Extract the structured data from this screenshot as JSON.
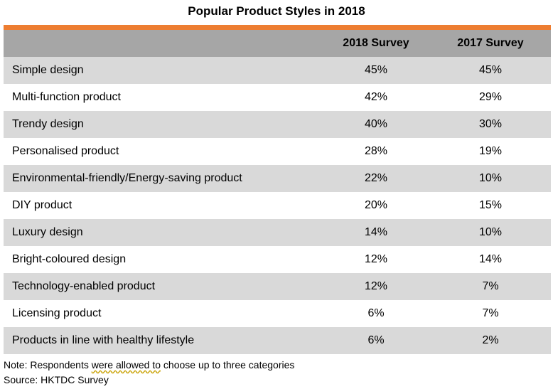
{
  "chart_data": {
    "type": "table",
    "title": "Popular Product Styles in 2018",
    "columns": [
      "",
      "2018 Survey",
      "2017 Survey"
    ],
    "series": [
      {
        "name": "2018 Survey",
        "values": [
          "45%",
          "42%",
          "40%",
          "28%",
          "22%",
          "20%",
          "14%",
          "12%",
          "12%",
          "6%",
          "6%"
        ]
      },
      {
        "name": "2017 Survey",
        "values": [
          "45%",
          "29%",
          "30%",
          "19%",
          "10%",
          "15%",
          "10%",
          "14%",
          "7%",
          "7%",
          "2%"
        ]
      }
    ],
    "rows": [
      {
        "label": "Simple design",
        "v2018": "45%",
        "v2017": "45%"
      },
      {
        "label": "Multi-function product",
        "v2018": "42%",
        "v2017": "29%"
      },
      {
        "label": "Trendy design",
        "v2018": "40%",
        "v2017": "30%"
      },
      {
        "label": "Personalised product",
        "v2018": "28%",
        "v2017": "19%"
      },
      {
        "label": "Environmental-friendly/Energy-saving product",
        "v2018": "22%",
        "v2017": "10%"
      },
      {
        "label": "DIY product",
        "v2018": "20%",
        "v2017": "15%"
      },
      {
        "label": "Luxury design",
        "v2018": "14%",
        "v2017": "10%"
      },
      {
        "label": "Bright-coloured design",
        "v2018": "12%",
        "v2017": "14%"
      },
      {
        "label": "Technology-enabled product",
        "v2018": "12%",
        "v2017": "7%"
      },
      {
        "label": "Licensing product",
        "v2018": "6%",
        "v2017": "7%"
      },
      {
        "label": "Products in line with healthy lifestyle",
        "v2018": "6%",
        "v2017": "2%"
      }
    ]
  },
  "footnotes": {
    "note_prefix": "Note: Respondents ",
    "note_marked": "were allowed to",
    "note_suffix": " choose up to three categories",
    "source": "Source: HKTDC Survey"
  },
  "colors": {
    "accent": "#ed7d31",
    "header_bg": "#a6a6a6",
    "row_shade": "#d9d9d9",
    "row_plain": "#ffffff"
  }
}
